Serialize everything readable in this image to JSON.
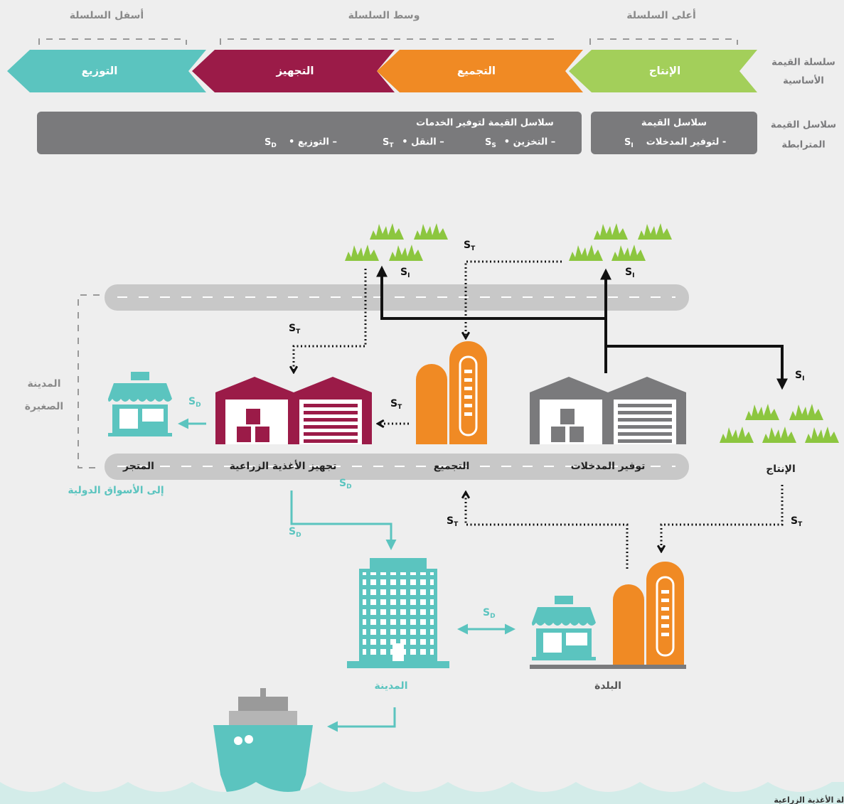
{
  "header": {
    "downstream": "أسفل السلسلة",
    "midstream": "وسط السلسلة",
    "upstream": "أعلى السلسلة"
  },
  "row_labels": {
    "core": [
      "سلسلة القيمة",
      "الأساسية"
    ],
    "linked": [
      "سلاسل القيمة",
      "المترابطة"
    ]
  },
  "core_chain": [
    "التوزيع",
    "التجهيز",
    "التجميع",
    "الإنتاج"
  ],
  "services": {
    "title": "سلاسل القيمة لتوفير الخدمات",
    "items": [
      {
        "text": "• التخزين –",
        "s": "S",
        "sub": "S"
      },
      {
        "text": "• النقل –",
        "s": "S",
        "sub": "T"
      },
      {
        "text": "• التوزيع –",
        "s": "S",
        "sub": "D"
      }
    ]
  },
  "inputs": {
    "title": "سلاسل القيمة",
    "text": "لتوفير المدخلات -",
    "s": "S",
    "sub": "I"
  },
  "diagram": {
    "small_town": [
      "المدينة",
      "الصغيرة"
    ],
    "shop": "المتجر",
    "processing": "تجهيز الأغذية الزراعية",
    "collection": "التجميع",
    "inputs": "توفير المدخلات",
    "production": "الإنتاج",
    "city": "المدينة",
    "town": "البلدة",
    "export": "إلى الأسواق الدولية",
    "footer": "لة الأغذية الزراعية",
    "flows": [
      {
        "s": "S",
        "sub": "T"
      },
      {
        "s": "S",
        "sub": "I"
      },
      {
        "s": "S",
        "sub": "I"
      },
      {
        "s": "S",
        "sub": "T"
      },
      {
        "s": "S",
        "sub": "I"
      },
      {
        "s": "S",
        "sub": "D"
      },
      {
        "s": "S",
        "sub": "T"
      },
      {
        "s": "S",
        "sub": "T"
      },
      {
        "s": "S",
        "sub": "T"
      },
      {
        "s": "S",
        "sub": "D"
      },
      {
        "s": "S",
        "sub": "D"
      },
      {
        "s": "S",
        "sub": "D"
      }
    ]
  }
}
